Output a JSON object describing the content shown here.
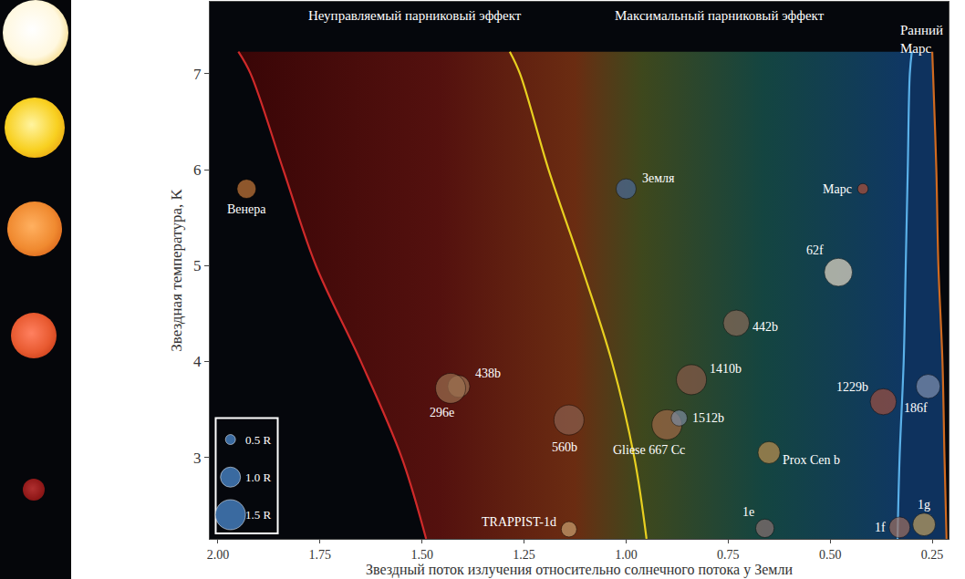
{
  "chart_data": {
    "type": "scatter",
    "xlabel": "Звездный поток излучения относительно солнечного потока у Земли",
    "ylabel": "Звездная температура, K",
    "xlim": [
      2.02,
      0.21
    ],
    "ylim": [
      2.15,
      7.75
    ],
    "xticks": [
      {
        "value": 2,
        "label": "2.00"
      },
      {
        "value": 1.75,
        "label": "1.75"
      },
      {
        "value": 1.5,
        "label": "1.50"
      },
      {
        "value": 1.25,
        "label": "1.25"
      },
      {
        "value": 1,
        "label": "1.00"
      },
      {
        "value": 0.75,
        "label": "0.75"
      },
      {
        "value": 0.5,
        "label": "0.50"
      },
      {
        "value": 0.25,
        "label": "0.25"
      }
    ],
    "yticks": [
      3,
      4,
      5,
      6,
      7
    ],
    "grid": false,
    "points": {
      "labels": [
        "Венера",
        "Земля",
        "Марс",
        "62f",
        "442b",
        "1410b",
        "438b",
        "296e",
        "560b",
        "Gliese 667 Cc",
        "1512b",
        "Prox Cen b",
        "1229b",
        "186f",
        "TRAPPIST-1d",
        "1e",
        "1f",
        "1g"
      ],
      "x": [
        1.93,
        1.0,
        0.42,
        0.48,
        0.73,
        0.84,
        1.41,
        1.43,
        1.14,
        0.9,
        0.87,
        0.65,
        0.37,
        0.26,
        1.14,
        0.66,
        0.33,
        0.27
      ],
      "y": [
        5.8,
        5.8,
        5.8,
        4.93,
        4.4,
        3.81,
        3.74,
        3.72,
        3.39,
        3.34,
        3.41,
        3.05,
        3.58,
        3.74,
        2.25,
        2.26,
        2.27,
        2.3
      ],
      "radius": [
        0.95,
        1.0,
        0.53,
        1.4,
        1.3,
        1.5,
        1.1,
        1.5,
        1.5,
        1.5,
        0.8,
        1.1,
        1.3,
        1.2,
        0.77,
        0.92,
        1.04,
        1.13
      ],
      "colors": [
        "#c87a3a",
        "#4a6a9a",
        "#b0503a",
        "#e8dcc8",
        "#8a6a5a",
        "#8a5a4a",
        "#a07858",
        "#9a7050",
        "#8a6050",
        "#a06848",
        "#7a8aa0",
        "#c09050",
        "#a05040",
        "#8090b0",
        "#c8a070",
        "#8a7070",
        "#a07060",
        "#c0a060"
      ]
    },
    "boundaries": [
      {
        "color": "#d02a2a",
        "x": [
          1.95,
          1.92,
          1.84,
          1.76,
          1.65,
          1.55,
          1.49
        ],
        "y": [
          7.23,
          7.0,
          6.0,
          5.0,
          4.0,
          3.0,
          2.15
        ]
      },
      {
        "color": "#e8d020",
        "x": [
          1.285,
          1.26,
          1.19,
          1.11,
          1.035,
          0.98,
          0.95
        ],
        "y": [
          7.23,
          7.0,
          6.0,
          5.0,
          4.0,
          3.0,
          2.15
        ]
      },
      {
        "color": "#5ab0e8",
        "x": [
          0.3,
          0.305,
          0.31,
          0.315,
          0.32,
          0.33,
          0.335
        ],
        "y": [
          7.23,
          7.0,
          6.0,
          5.0,
          4.0,
          3.0,
          2.15
        ]
      },
      {
        "color": "#d06a20",
        "x": [
          0.25,
          0.248,
          0.24,
          0.235,
          0.225,
          0.22,
          0.215
        ],
        "y": [
          7.23,
          7.0,
          6.0,
          5.0,
          4.0,
          3.0,
          2.15
        ]
      }
    ],
    "zone_labels": [
      "Неуправляемый парниковый эффект",
      "Максимальный парниковый эффект",
      "Ранний Марс"
    ],
    "size_legend": {
      "values": [
        0.5,
        1.0,
        1.5
      ],
      "labels": [
        "0.5 R",
        "1.0 R",
        "1.5 R"
      ]
    }
  }
}
